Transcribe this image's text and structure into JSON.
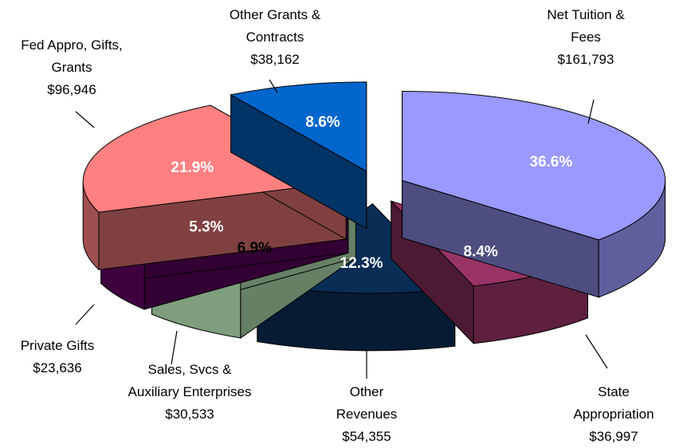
{
  "chart_data": {
    "type": "pie3d",
    "categories": [
      "Net Tuition &\nFees",
      "State\nAppropriation",
      "Other\nRevenues",
      "Sales, Svcs &\nAuxiliary Enterprises",
      "Private Gifts",
      "Fed Appro, Gifts,\nGrants",
      "Other Grants &\nContracts"
    ],
    "values": [
      161793,
      36997,
      54355,
      30533,
      23636,
      96946,
      38162
    ],
    "value_labels": [
      "$161,793",
      "$36,997",
      "$54,355",
      "$30,533",
      "$23,636",
      "$96,946",
      "$38,162"
    ],
    "percent_labels": [
      "36.6%",
      "8.4%",
      "12.3%",
      "6.9%",
      "5.3%",
      "21.9%",
      "8.6%"
    ],
    "colors": [
      "#9999ff",
      "#993366",
      "#0a2d55",
      "#ccffcc",
      "#660066",
      "#ff8080",
      "#0066cc"
    ]
  }
}
